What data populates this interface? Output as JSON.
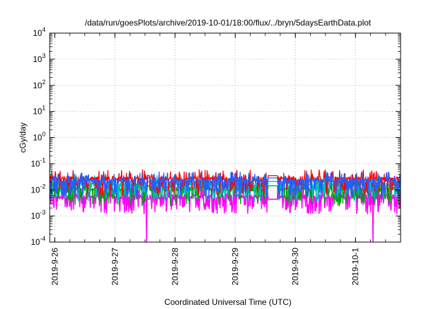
{
  "chart_data": {
    "type": "line",
    "title": "/data/run/goesPlots/archive/2019-10-01/18:00/flux/../bryn/5daysEarthData.plot",
    "xlabel": "Coordinated Universal Time (UTC)",
    "ylabel": "cGy/day",
    "yscale": "log",
    "ylim": [
      0.0001,
      10000
    ],
    "xlim": [
      "2019-09-25 22:00",
      "2019-10-01 18:00"
    ],
    "x_ticks": [
      "2019-9-26",
      "2019-9-27",
      "2019-9-28",
      "2019-9-29",
      "2019-9-30",
      "2019-10-1"
    ],
    "y_ticks": [
      {
        "base": "10",
        "exp": "-4"
      },
      {
        "base": "10",
        "exp": "-3"
      },
      {
        "base": "10",
        "exp": "-2"
      },
      {
        "base": "10",
        "exp": "-1"
      },
      {
        "base": "10",
        "exp": "0"
      },
      {
        "base": "10",
        "exp": "1"
      },
      {
        "base": "10",
        "exp": "2"
      },
      {
        "base": "10",
        "exp": "3"
      },
      {
        "base": "10",
        "exp": "4"
      }
    ],
    "grid": true,
    "gaps": [
      [
        "2019-09-27 13:00",
        "2019-09-27 14:00"
      ],
      [
        "2019-09-29 13:00",
        "2019-09-29 17:00"
      ]
    ],
    "drops": [
      "2019-09-27 12:40",
      "2019-09-27 13:20",
      "2019-10-01 07:00"
    ],
    "series": [
      {
        "color": "#ff0000",
        "typical": 0.027,
        "spike_max": 0.06
      },
      {
        "color": "#00c0c0",
        "typical": 0.016,
        "spike_max": 0.04
      },
      {
        "color": "#00a000",
        "typical": 0.011,
        "spike_max": 0.035
      },
      {
        "color": "#2060ff",
        "typical": 0.022,
        "spike_max": 0.08
      },
      {
        "color": "#ff00ff",
        "typical": 0.0055,
        "spike_max": 0.03
      }
    ]
  }
}
